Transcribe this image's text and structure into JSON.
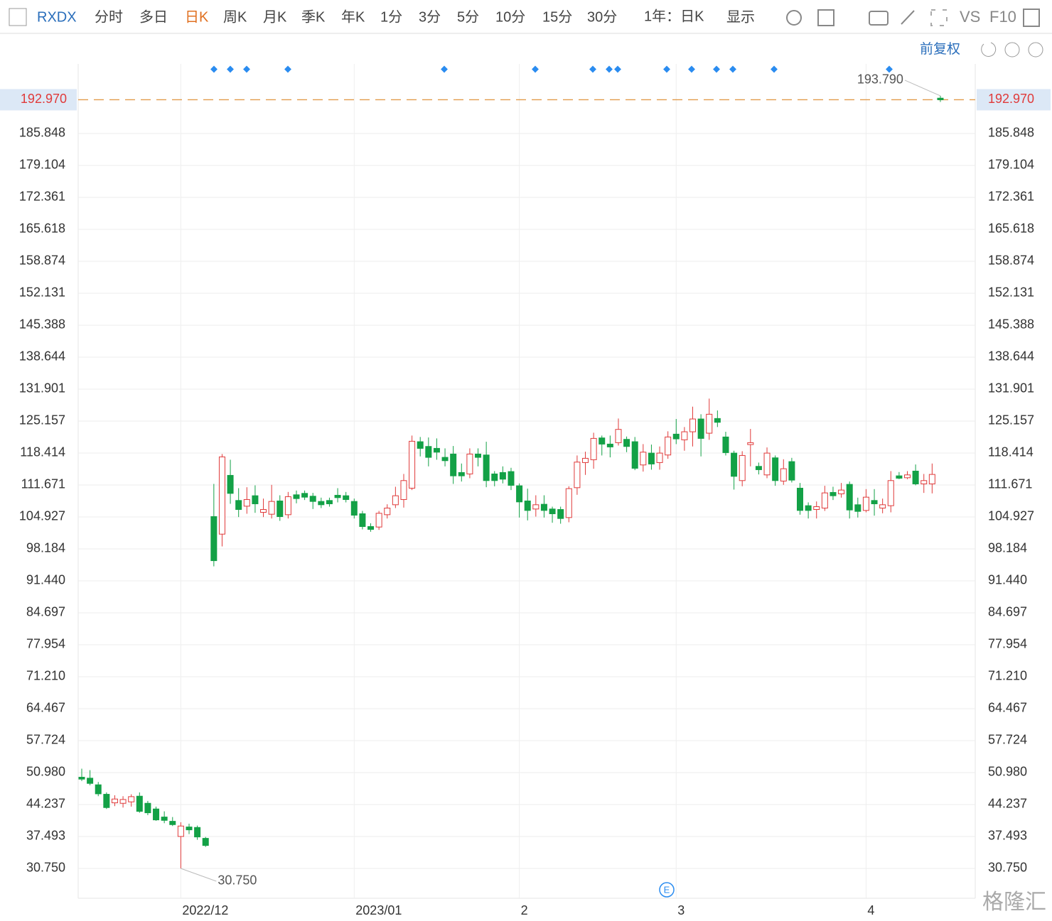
{
  "toolbar": {
    "symbol": "RXDX",
    "tabs": [
      "分时",
      "多日",
      "日K",
      "周K",
      "月K",
      "季K",
      "年K",
      "1分",
      "3分",
      "5分",
      "10分",
      "15分",
      "30分"
    ],
    "range": "1年：日K",
    "display": "显示",
    "vs": "VS",
    "f10": "F10",
    "adjust": "前复权",
    "watermark": "格隆汇"
  },
  "chart_data": {
    "type": "candlestick",
    "categories": [
      null,
      null,
      null,
      null,
      null,
      null,
      null,
      null,
      null,
      null,
      null,
      null,
      "2022/12",
      null,
      null,
      null,
      null,
      null,
      null,
      null,
      null,
      null,
      null,
      null,
      null,
      null,
      null,
      null,
      null,
      null,
      null,
      null,
      null,
      "2023/01",
      null,
      null,
      null,
      null,
      null,
      null,
      null,
      null,
      null,
      null,
      null,
      null,
      null,
      null,
      null,
      null,
      null,
      null,
      null,
      "2",
      null,
      null,
      null,
      null,
      null,
      null,
      null,
      null,
      null,
      null,
      null,
      null,
      null,
      null,
      null,
      null,
      null,
      null,
      "3",
      null,
      null,
      null,
      null,
      null,
      null,
      null,
      null,
      null,
      null,
      null,
      null,
      null,
      null,
      null,
      null,
      null,
      null,
      null,
      null,
      null,
      null,
      "4",
      null,
      null,
      null,
      null,
      null,
      null,
      null,
      null,
      null
    ],
    "open": [
      50.0,
      49.8,
      48.4,
      46.4,
      44.6,
      44.5,
      44.8,
      46.0,
      44.5,
      43.3,
      41.6,
      40.7,
      37.5,
      39.5,
      39.4,
      37.1,
      105.0,
      101.3,
      113.7,
      108.4,
      107.2,
      109.4,
      105.9,
      105.5,
      108.3,
      105.4,
      109.6,
      109.9,
      109.3,
      108.2,
      108.4,
      109.5,
      109.4,
      108.2,
      105.6,
      102.9,
      102.8,
      105.4,
      107.5,
      108.6,
      111.0,
      120.8,
      119.8,
      119.4,
      117.5,
      118.2,
      114.3,
      114.0,
      118.2,
      118.0,
      114.0,
      114.3,
      114.5,
      111.5,
      108.3,
      106.6,
      107.6,
      106.6,
      106.5,
      104.8,
      111.1,
      116.4,
      117.0,
      121.6,
      120.3,
      120.6,
      121.3,
      120.8,
      115.9,
      118.4,
      116.4,
      118.0,
      122.4,
      121.2,
      122.9,
      125.6,
      122.6,
      125.7,
      121.8,
      118.4,
      112.6,
      120.2,
      115.6,
      113.8,
      117.4,
      112.5,
      116.6,
      111.0,
      107.3,
      106.5,
      106.8,
      110.1,
      109.8,
      111.8,
      107.5,
      106.3,
      108.4,
      106.8,
      107.3,
      113.6,
      113.2,
      114.6,
      111.9,
      111.9,
      193.3
    ],
    "high": [
      51.8,
      51.5,
      49.0,
      46.8,
      46.2,
      46.0,
      46.4,
      46.8,
      45.0,
      43.8,
      42.8,
      41.6,
      40.5,
      40.2,
      39.8,
      37.4,
      111.9,
      118.2,
      117.0,
      111.0,
      111.2,
      111.6,
      108.8,
      111.7,
      109.5,
      110.2,
      110.5,
      110.5,
      110.0,
      109.0,
      109.0,
      111.0,
      110.2,
      108.8,
      106.2,
      103.6,
      106.2,
      107.6,
      111.3,
      114.0,
      122.1,
      121.8,
      121.7,
      121.5,
      119.4,
      119.9,
      116.2,
      119.4,
      119.4,
      120.8,
      114.6,
      115.6,
      115.3,
      112.0,
      110.9,
      109.5,
      109.5,
      107.1,
      107.1,
      111.4,
      117.9,
      118.7,
      122.7,
      122.1,
      122.1,
      125.7,
      121.9,
      121.8,
      120.3,
      120.2,
      119.8,
      123.0,
      125.6,
      123.9,
      128.2,
      126.6,
      129.9,
      127.4,
      122.9,
      118.9,
      118.8,
      123.5,
      116.4,
      119.6,
      117.9,
      117.1,
      117.4,
      112.1,
      108.0,
      108.2,
      111.5,
      111.3,
      112.1,
      112.4,
      109.0,
      110.8,
      110.8,
      108.8,
      114.6,
      114.4,
      114.6,
      116.0,
      114.0,
      116.2,
      193.79
    ],
    "low": [
      49.2,
      48.3,
      46.0,
      43.3,
      43.9,
      43.6,
      43.8,
      42.5,
      42.0,
      40.8,
      40.3,
      39.7,
      30.75,
      38.0,
      36.8,
      35.3,
      94.5,
      98.7,
      107.7,
      104.9,
      105.6,
      105.8,
      104.9,
      104.6,
      104.1,
      104.6,
      107.8,
      108.5,
      106.6,
      106.8,
      107.1,
      108.0,
      108.0,
      104.6,
      102.3,
      101.8,
      102.2,
      104.6,
      106.8,
      106.9,
      110.6,
      117.7,
      115.6,
      117.0,
      115.6,
      111.9,
      112.4,
      113.1,
      115.6,
      111.2,
      111.4,
      112.0,
      110.6,
      104.8,
      104.2,
      105.0,
      104.8,
      103.7,
      103.5,
      103.8,
      109.6,
      113.8,
      115.1,
      117.9,
      117.5,
      120.0,
      118.6,
      114.8,
      114.5,
      114.9,
      114.9,
      117.2,
      120.3,
      118.9,
      119.8,
      117.7,
      121.2,
      123.9,
      117.9,
      110.7,
      111.4,
      115.6,
      113.9,
      113.1,
      111.5,
      111.7,
      112.2,
      105.4,
      104.6,
      104.6,
      106.2,
      108.5,
      109.0,
      104.6,
      104.8,
      105.9,
      105.2,
      105.7,
      105.9,
      112.9,
      112.9,
      111.6,
      110.0,
      109.9,
      192.5
    ],
    "close": [
      49.6,
      48.7,
      46.5,
      43.6,
      45.4,
      45.3,
      45.9,
      42.8,
      42.5,
      41.0,
      40.9,
      40.0,
      39.7,
      38.9,
      37.4,
      35.6,
      95.7,
      117.6,
      109.9,
      106.5,
      108.6,
      107.7,
      106.5,
      108.2,
      105.0,
      109.2,
      108.8,
      109.1,
      108.2,
      107.5,
      107.7,
      109.0,
      108.6,
      105.3,
      102.9,
      102.3,
      105.7,
      106.8,
      109.4,
      112.6,
      120.9,
      119.4,
      117.5,
      118.6,
      116.8,
      113.6,
      113.6,
      118.2,
      117.5,
      112.6,
      112.6,
      112.9,
      111.6,
      108.1,
      106.3,
      107.5,
      106.3,
      105.6,
      104.6,
      110.9,
      116.5,
      117.3,
      121.5,
      120.3,
      119.7,
      123.4,
      119.8,
      115.2,
      118.6,
      116.1,
      118.4,
      121.8,
      121.4,
      122.9,
      125.6,
      121.5,
      126.6,
      124.9,
      118.5,
      113.5,
      117.9,
      120.6,
      114.9,
      118.4,
      112.6,
      115.1,
      112.7,
      106.3,
      106.3,
      107.1,
      110.0,
      109.4,
      110.6,
      106.4,
      106.1,
      109.1,
      107.7,
      107.5,
      112.6,
      113.1,
      113.8,
      111.9,
      112.6,
      113.9,
      192.97
    ],
    "up_color": "#e03a3a",
    "down_color": "#13a146",
    "ylim": [
      24.456,
      200.53
    ],
    "yticks": [
      {
        "value": 30.75,
        "label": "30.750"
      },
      37.493,
      44.237,
      {
        "value": 50.98,
        "label": "50.980"
      },
      57.724,
      64.467,
      {
        "value": 71.21,
        "label": "71.210"
      },
      77.954,
      84.697,
      {
        "value": 91.44,
        "label": "91.440"
      },
      98.184,
      104.927,
      111.671,
      118.414,
      125.157,
      131.901,
      138.644,
      145.388,
      152.131,
      158.874,
      165.618,
      172.361,
      179.104,
      185.848
    ],
    "last_price": {
      "value": 192.97,
      "label": "192.970"
    },
    "annotations": [
      {
        "label": "193.790",
        "value": 193.79
      },
      {
        "label": "30.750",
        "value": 30.75
      }
    ],
    "grid": true
  }
}
